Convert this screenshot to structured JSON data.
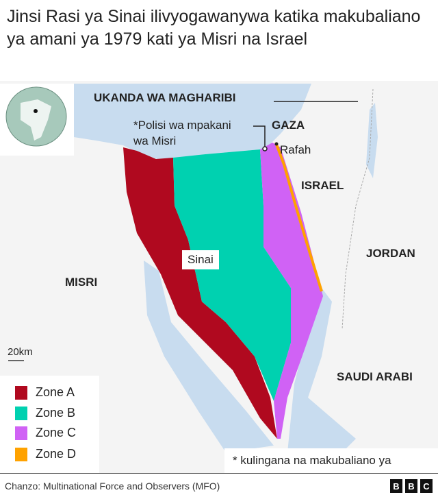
{
  "title": "Jinsi Rasi ya Sinai ilivyogawanywa katika makubaliano ya amani ya 1979 kati ya Misri na Israel",
  "labels": {
    "west_bank": "UKANDA WA MAGHARIBI",
    "gaza": "GAZA",
    "police": "*Polisi wa mpakani",
    "police2": "wa Misri",
    "rafah": "Rafah",
    "israel": "ISRAEL",
    "jordan": "JORDAN",
    "sinai": "Sinai",
    "misri": "MISRI",
    "saudi": "SAUDI ARABI",
    "scale": "20km"
  },
  "legend": [
    {
      "label": "Zone A",
      "color": "#b0091f"
    },
    {
      "label": "Zone B",
      "color": "#00d1b0"
    },
    {
      "label": "Zone C",
      "color": "#d062f5"
    },
    {
      "label": "Zone D",
      "color": "#ffa200"
    }
  ],
  "note": "* kulingana  na makubaliano ya",
  "source": "Chanzo: Multinational Force and Observers (MFO)",
  "logo": [
    "B",
    "B",
    "C"
  ],
  "colors": {
    "sea": "#c8dcef",
    "land": "#f4f4f4"
  }
}
